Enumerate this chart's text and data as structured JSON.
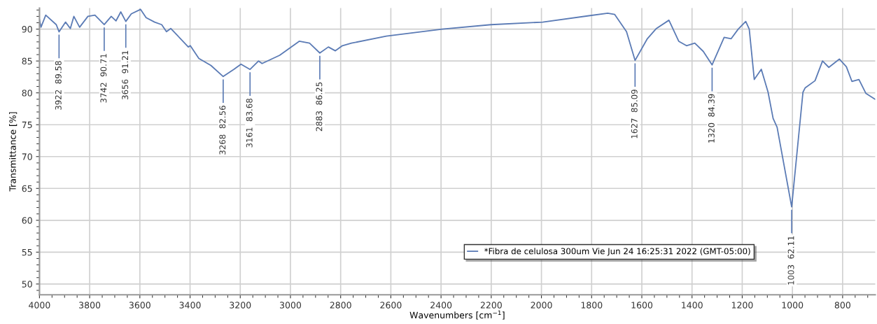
{
  "chart_data": {
    "type": "line",
    "xlabel": "Wavenumbers [cm$^{−1}$]",
    "ylabel": "Transmittance [%]",
    "xlim": [
      4000,
      670
    ],
    "ylim": [
      48.3,
      93.3
    ],
    "xticks": [
      4000,
      3800,
      3600,
      3400,
      3200,
      3000,
      2800,
      2600,
      2400,
      2200,
      2000,
      1800,
      1600,
      1400,
      1200,
      1000,
      800
    ],
    "yticks": [
      50,
      55,
      60,
      65,
      70,
      75,
      80,
      85,
      90
    ],
    "grid": true,
    "legend": "bottom right",
    "marker": "none",
    "line_style": "solid",
    "series": [
      {
        "name": "*Fibra de celulosa 300um Vie Jun 24 16:25:31 2022 (GMT-05:00)",
        "color": "#5b7bb5",
        "x": [
          4000,
          3994,
          3975,
          3933,
          3922,
          3896,
          3877,
          3863,
          3840,
          3807,
          3779,
          3742,
          3714,
          3695,
          3676,
          3656,
          3634,
          3597,
          3575,
          3541,
          3513,
          3494,
          3477,
          3438,
          3407,
          3399,
          3365,
          3317,
          3268,
          3225,
          3197,
          3161,
          3127,
          3113,
          3043,
          2965,
          2924,
          2883,
          2849,
          2821,
          2793,
          2757,
          2618,
          2395,
          2201,
          1995,
          1811,
          1736,
          1708,
          1661,
          1627,
          1578,
          1542,
          1492,
          1453,
          1422,
          1389,
          1355,
          1320,
          1272,
          1244,
          1216,
          1186,
          1172,
          1152,
          1124,
          1097,
          1077,
          1061,
          1003,
          958,
          949,
          910,
          880,
          855,
          813,
          785,
          763,
          735,
          707,
          671
        ],
        "values": [
          91.5,
          90.3,
          92.2,
          90.7,
          89.58,
          91.1,
          90.1,
          92.0,
          90.3,
          92.0,
          92.2,
          90.71,
          92.0,
          91.3,
          92.7,
          91.21,
          92.4,
          93.1,
          91.8,
          91.1,
          90.7,
          89.6,
          90.1,
          88.5,
          87.2,
          87.4,
          85.4,
          84.3,
          82.56,
          83.7,
          84.5,
          83.68,
          85.0,
          84.6,
          85.9,
          88.1,
          87.8,
          86.25,
          87.2,
          86.6,
          87.4,
          87.8,
          88.9,
          90.0,
          90.7,
          91.1,
          92.1,
          92.5,
          92.3,
          89.6,
          85.09,
          88.5,
          90.1,
          91.4,
          88.1,
          87.4,
          87.8,
          86.5,
          84.39,
          88.7,
          88.5,
          90.0,
          91.2,
          90.0,
          82.1,
          83.7,
          80.1,
          76.0,
          74.6,
          62.11,
          80.1,
          80.8,
          81.9,
          85.0,
          84.0,
          85.3,
          84.1,
          81.8,
          82.1,
          79.9,
          79.0
        ]
      }
    ],
    "annotations": [
      {
        "text": "3922  89.58",
        "x": 3922,
        "y": 89.58
      },
      {
        "text": "3742  90.71",
        "x": 3742,
        "y": 90.71
      },
      {
        "text": "3656  91.21",
        "x": 3656,
        "y": 91.21
      },
      {
        "text": "3268  82.56",
        "x": 3268,
        "y": 82.56
      },
      {
        "text": "3161  83.68",
        "x": 3161,
        "y": 83.68
      },
      {
        "text": "2883  86.25",
        "x": 2883,
        "y": 86.25
      },
      {
        "text": "1627  85.09",
        "x": 1627,
        "y": 85.09
      },
      {
        "text": "1320  84.39",
        "x": 1320,
        "y": 84.39
      },
      {
        "text": "1003  62.11",
        "x": 1003,
        "y": 62.11
      }
    ]
  }
}
